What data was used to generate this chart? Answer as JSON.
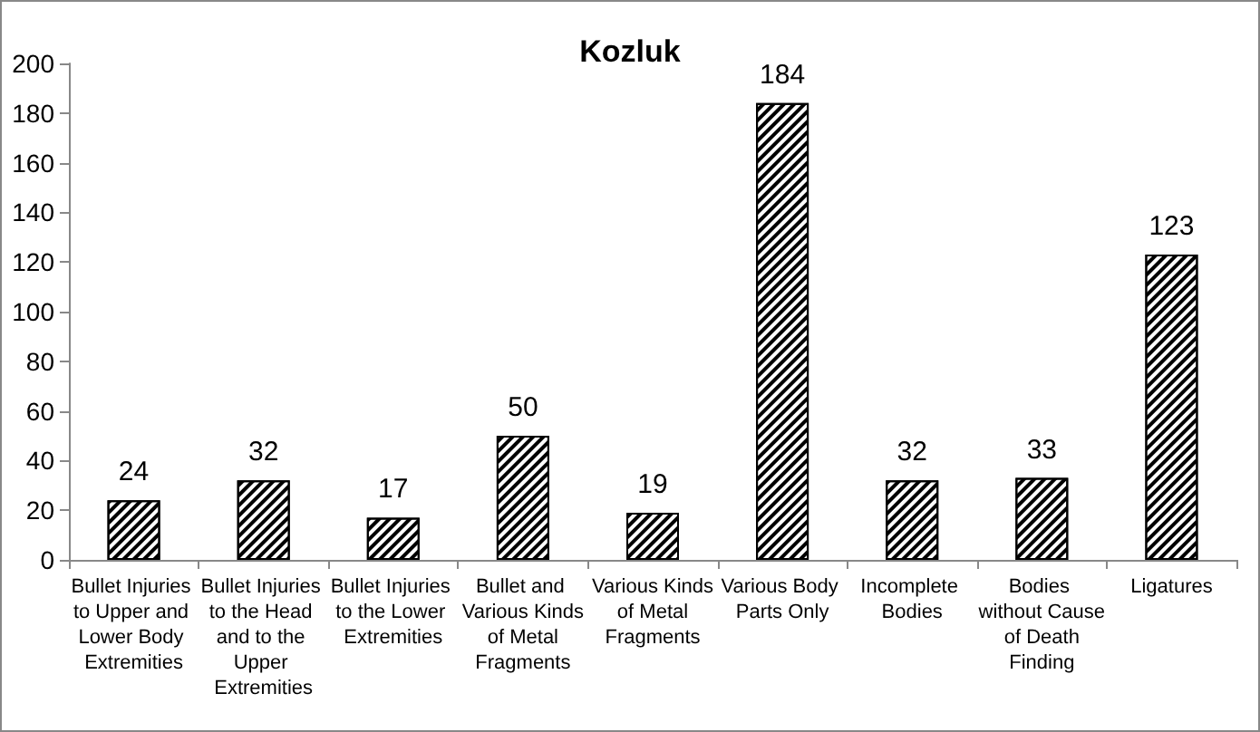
{
  "chart_data": {
    "type": "bar",
    "title": "Kozluk",
    "categories": [
      "Bullet Injuries to Upper and Lower Body Extremities",
      "Bullet Injuries to the Head and to the Upper Extremities",
      "Bullet Injuries to the Lower Extremities",
      "Bullet and Various Kinds of Metal Fragments",
      "Various Kinds of Metal Fragments",
      "Various Body Parts Only",
      "Incomplete Bodies",
      "Bodies without Cause of Death Finding",
      "Ligatures"
    ],
    "values": [
      24,
      32,
      17,
      50,
      19,
      184,
      32,
      33,
      123
    ],
    "color": "#000000",
    "ylim": [
      0,
      200
    ],
    "yticks": [
      0,
      20,
      40,
      60,
      80,
      100,
      120,
      140,
      160,
      180,
      200
    ],
    "grid": false,
    "data_labels": true
  }
}
